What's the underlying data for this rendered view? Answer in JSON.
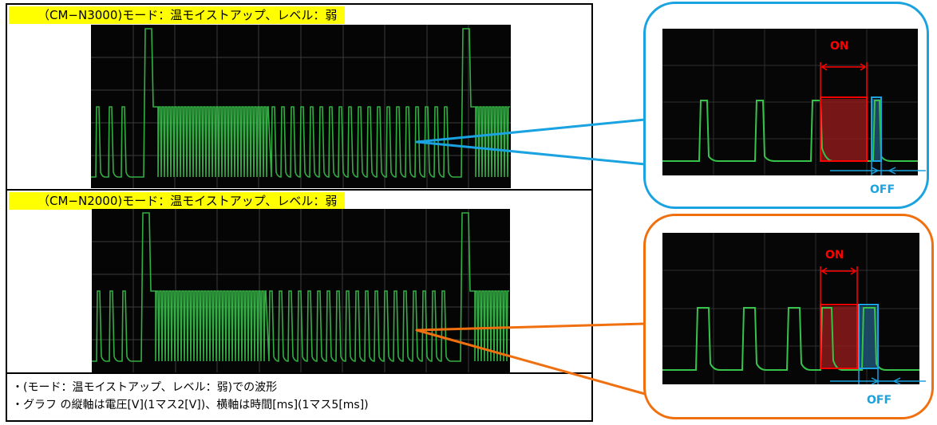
{
  "panels": {
    "top_label": "（CM−N3000)モード：温モイストアップ、レベル：弱",
    "bottom_label": "（CM−N2000)モード：温モイストアップ、レベル：弱"
  },
  "notes": {
    "line1": "・(モード：温モイストアップ、レベル：弱)での波形",
    "line2": "・グラフ の縦軸は電圧[V](1マス2[V])、横軸は時間[ms](1マス5[ms])"
  },
  "callouts": {
    "top": {
      "on_label": "ON",
      "off_label": "OFF"
    },
    "bottom": {
      "on_label": "ON",
      "off_label": "OFF"
    }
  },
  "colors": {
    "trace": "#37c24a",
    "on_marker": "#ff0000",
    "off_marker": "#1aa3e0",
    "callout_top_border": "#1aa3e0",
    "callout_bottom_border": "#f07010",
    "label_highlight": "#ffff00"
  }
}
